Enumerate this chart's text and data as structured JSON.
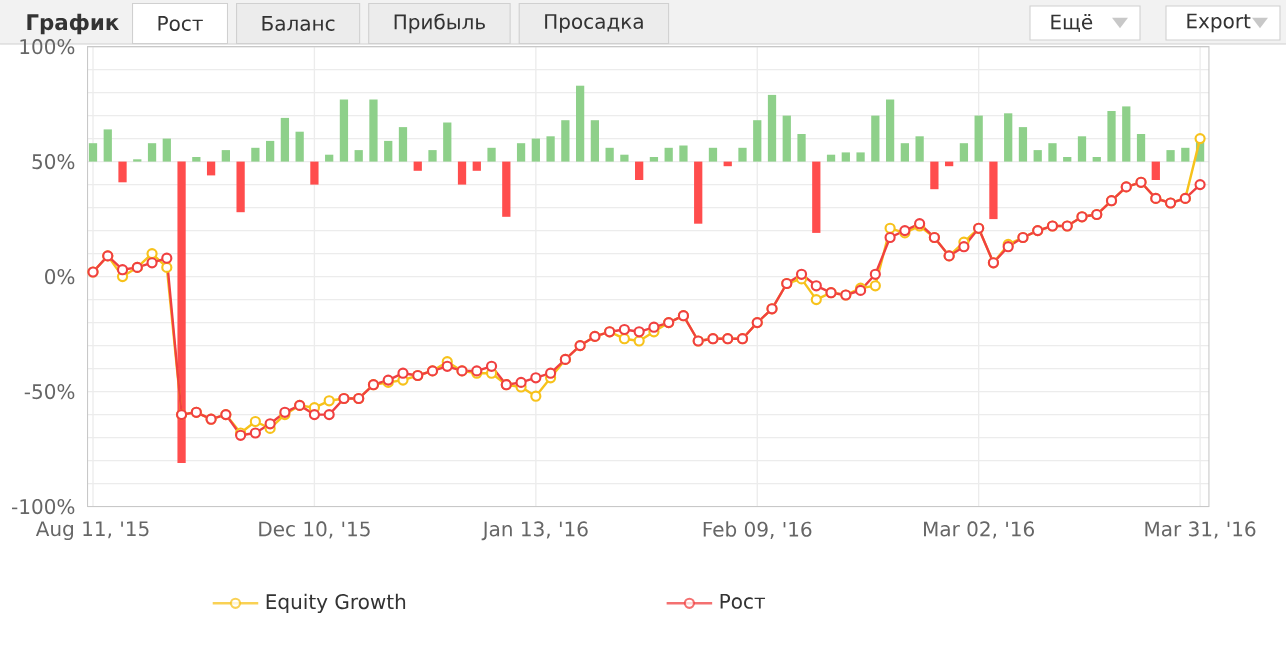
{
  "chart_data": {
    "type": "line",
    "title": "График",
    "annotations": [
      "Рост",
      "Баланс",
      "Прибыль",
      "Просадка",
      "Ещё",
      "Export"
    ],
    "categories": [
      "Aug 11, '15",
      null,
      null,
      null,
      null,
      null,
      null,
      null,
      null,
      null,
      null,
      null,
      null,
      null,
      null,
      "Dec 10, '15",
      null,
      null,
      null,
      null,
      null,
      null,
      null,
      null,
      null,
      null,
      null,
      null,
      null,
      null,
      "Jan 13, '16",
      null,
      null,
      null,
      null,
      null,
      null,
      null,
      null,
      null,
      null,
      null,
      null,
      null,
      null,
      "Feb 09, '16",
      null,
      null,
      null,
      null,
      null,
      null,
      null,
      null,
      null,
      null,
      null,
      null,
      null,
      null,
      "Mar 02, '16",
      null,
      null,
      null,
      null,
      null,
      null,
      null,
      null,
      null,
      null,
      null,
      null,
      null,
      null,
      "Mar 31, '16"
    ],
    "series": [
      {
        "type": "bar",
        "base": [
          50,
          50,
          50,
          50,
          50,
          50,
          50,
          50,
          50,
          50,
          50,
          50,
          50,
          50,
          50,
          50,
          50,
          50,
          50,
          50,
          50,
          50,
          50,
          50,
          50,
          50,
          50,
          50,
          50,
          50,
          50,
          50,
          50,
          50,
          50,
          50,
          50,
          50,
          50,
          50,
          50,
          50,
          50,
          50,
          50,
          50,
          50,
          50,
          50,
          50,
          50,
          50,
          50,
          50,
          50,
          50,
          50,
          50,
          50,
          50,
          50,
          50,
          50,
          50,
          50,
          50,
          50,
          50,
          50,
          50,
          50,
          50,
          50,
          50,
          50,
          50
        ],
        "values": [
          8,
          14,
          -9,
          1,
          8,
          10,
          -131,
          2,
          -6,
          5,
          -22,
          6,
          9,
          19,
          13,
          -10,
          3,
          27,
          5,
          27,
          9,
          15,
          -4,
          5,
          17,
          -10,
          -4,
          6,
          -24,
          8,
          10,
          11,
          18,
          33,
          18,
          6,
          3,
          -8,
          2,
          6,
          7,
          -27,
          6,
          -2,
          6,
          18,
          29,
          20,
          12,
          -31,
          3,
          4,
          4,
          20,
          27,
          8,
          11,
          -12,
          -2,
          8,
          20,
          -25,
          21,
          15,
          5,
          8,
          2,
          11,
          2,
          22,
          24,
          12,
          -8,
          5,
          6,
          10
        ],
        "colors": [
          "#8ed08a",
          "#8ed08a",
          "#ff4d4d",
          "#8ed08a",
          "#8ed08a",
          "#8ed08a",
          "#ff4d4d",
          "#8ed08a",
          "#ff4d4d",
          "#8ed08a",
          "#ff4d4d",
          "#8ed08a",
          "#8ed08a",
          "#8ed08a",
          "#8ed08a",
          "#ff4d4d",
          "#8ed08a",
          "#8ed08a",
          "#8ed08a",
          "#8ed08a",
          "#8ed08a",
          "#8ed08a",
          "#ff4d4d",
          "#8ed08a",
          "#8ed08a",
          "#ff4d4d",
          "#ff4d4d",
          "#8ed08a",
          "#ff4d4d",
          "#8ed08a",
          "#8ed08a",
          "#8ed08a",
          "#8ed08a",
          "#8ed08a",
          "#8ed08a",
          "#8ed08a",
          "#8ed08a",
          "#ff4d4d",
          "#8ed08a",
          "#8ed08a",
          "#8ed08a",
          "#ff4d4d",
          "#8ed08a",
          "#ff4d4d",
          "#8ed08a",
          "#8ed08a",
          "#8ed08a",
          "#8ed08a",
          "#8ed08a",
          "#ff4d4d",
          "#8ed08a",
          "#8ed08a",
          "#8ed08a",
          "#8ed08a",
          "#8ed08a",
          "#8ed08a",
          "#8ed08a",
          "#ff4d4d",
          "#ff4d4d",
          "#8ed08a",
          "#8ed08a",
          "#ff4d4d",
          "#8ed08a",
          "#8ed08a",
          "#8ed08a",
          "#8ed08a",
          "#8ed08a",
          "#8ed08a",
          "#8ed08a",
          "#8ed08a",
          "#8ed08a",
          "#8ed08a",
          "#ff4d4d",
          "#8ed08a",
          "#8ed08a",
          "#8ed08a"
        ]
      },
      {
        "name": "Equity Growth",
        "color": "#f7c21b",
        "values": [
          2,
          9,
          0,
          4,
          10,
          4,
          -60,
          -59,
          -62,
          -60,
          -68,
          -63,
          -66,
          -60,
          -56,
          -57,
          -54,
          -53,
          -53,
          -47,
          -46,
          -45,
          -43,
          -41,
          -37,
          -41,
          -42,
          -42,
          -47,
          -48,
          -52,
          -44,
          -36,
          -30,
          -26,
          -24,
          -27,
          -28,
          -24,
          -20,
          -17,
          -28,
          -27,
          -27,
          -27,
          -20,
          -14,
          -3,
          -1,
          -10,
          -7,
          -8,
          -5,
          -4,
          21,
          19,
          22,
          17,
          9,
          15,
          21,
          6,
          14,
          17,
          20,
          22,
          22,
          26,
          27,
          33,
          39,
          41,
          34,
          32,
          34,
          60
        ]
      },
      {
        "name": "Рост",
        "color": "#f04040",
        "values": [
          2,
          9,
          3,
          4,
          6,
          8,
          -60,
          -59,
          -62,
          -60,
          -69,
          -68,
          -64,
          -59,
          -56,
          -60,
          -60,
          -53,
          -53,
          -47,
          -45,
          -42,
          -43,
          -41,
          -39,
          -41,
          -41,
          -39,
          -47,
          -46,
          -44,
          -42,
          -36,
          -30,
          -26,
          -24,
          -23,
          -24,
          -22,
          -20,
          -17,
          -28,
          -27,
          -27,
          -27,
          -20,
          -14,
          -3,
          1,
          -4,
          -7,
          -8,
          -6,
          1,
          17,
          20,
          23,
          17,
          9,
          13,
          21,
          6,
          13,
          17,
          20,
          22,
          22,
          26,
          27,
          33,
          39,
          41,
          34,
          32,
          34,
          40
        ]
      }
    ],
    "ylim": [
      -100,
      100
    ],
    "yticks": [
      {
        "value": -100,
        "label": "-100%"
      },
      {
        "value": -90,
        "label": null
      },
      {
        "value": -80,
        "label": null
      },
      {
        "value": -70,
        "label": null
      },
      {
        "value": -60,
        "label": null
      },
      {
        "value": -50,
        "label": "-50%"
      },
      {
        "value": -40,
        "label": null
      },
      {
        "value": -30,
        "label": null
      },
      {
        "value": -20,
        "label": null
      },
      {
        "value": -10,
        "label": null
      },
      {
        "value": 0,
        "label": "0%"
      },
      {
        "value": 10,
        "label": null
      },
      {
        "value": 20,
        "label": null
      },
      {
        "value": 30,
        "label": null
      },
      {
        "value": 40,
        "label": null
      },
      {
        "value": 50,
        "label": "50%"
      },
      {
        "value": 60,
        "label": null
      },
      {
        "value": 70,
        "label": null
      },
      {
        "value": 80,
        "label": null
      },
      {
        "value": 90,
        "label": null
      },
      {
        "value": 100,
        "label": "100%"
      }
    ],
    "grid": true,
    "legend": "bottom",
    "marker": "circle",
    "line_style": "solid"
  }
}
